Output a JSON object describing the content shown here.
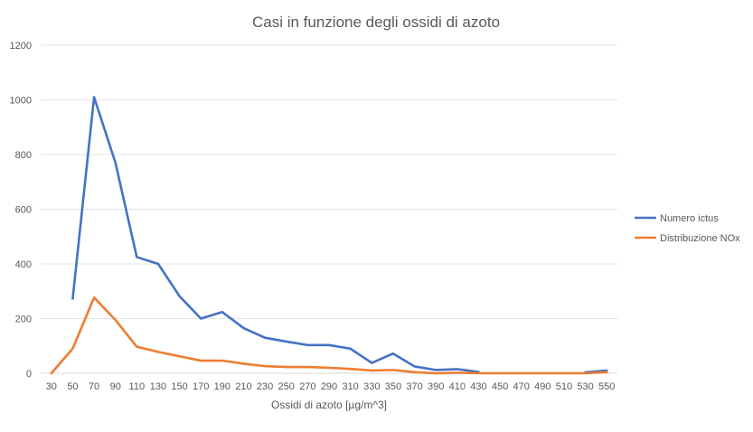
{
  "chart_data": {
    "type": "line",
    "title": "Casi in funzione degli ossidi di azoto",
    "xlabel": "Ossidi di azoto [µg/m^3]",
    "ylabel": "",
    "categories": [
      30,
      50,
      70,
      90,
      110,
      130,
      150,
      170,
      190,
      210,
      230,
      250,
      270,
      290,
      310,
      330,
      350,
      370,
      390,
      410,
      430,
      450,
      470,
      490,
      510,
      530,
      550
    ],
    "ylim": [
      0,
      1200
    ],
    "yticks": [
      0,
      200,
      400,
      600,
      800,
      1000,
      1200
    ],
    "grid": true,
    "legend_position": "right",
    "series": [
      {
        "name": "Numero ictus",
        "color": "#4472c4",
        "values": [
          null,
          273,
          1010,
          770,
          425,
          400,
          282,
          200,
          224,
          165,
          130,
          116,
          103,
          103,
          90,
          38,
          72,
          25,
          12,
          15,
          5,
          null,
          null,
          null,
          null,
          3,
          10
        ]
      },
      {
        "name": "Distribuzione NOx",
        "color": "#ed7d31",
        "values": [
          0,
          90,
          277,
          195,
          97,
          78,
          62,
          46,
          46,
          35,
          26,
          23,
          23,
          20,
          16,
          10,
          12,
          4,
          0,
          2,
          0,
          0,
          0,
          0,
          0,
          0,
          4
        ]
      }
    ]
  }
}
